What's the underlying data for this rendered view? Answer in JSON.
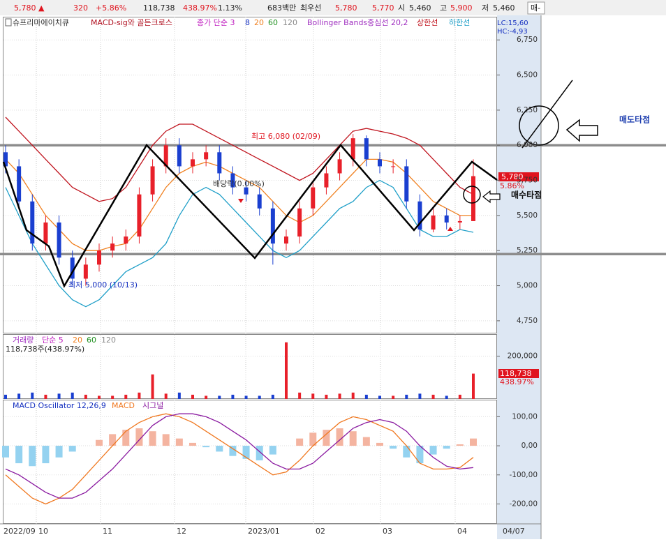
{
  "header": {
    "items": [
      "5,780 ▲",
      "320",
      "+5.86%",
      "118,738",
      "438.97%",
      "1.13%",
      "683백만",
      "최우선",
      "5,780",
      "5,770",
      "시",
      "5,460",
      "고",
      "5,900",
      "저",
      "5,460",
      "매-"
    ]
  },
  "legend": [
    "슈프리마에이치큐",
    "MACD-sig와 골든크로스",
    "종가 단순 3",
    "8",
    "20",
    "60",
    "120",
    "Bollinger Bands중심선 20,2",
    "상한선",
    "하한선"
  ],
  "corner": [
    "LC:15,60",
    "HC:-4,93"
  ],
  "annotations": {
    "high": "최고 6,080 (02/09)",
    "low": "최저 5,000 (10/13)",
    "ex_dividend": "배당락(0.00%)",
    "buy": "매수타점",
    "sell": "매도타점"
  },
  "x_labels": [
    "2022/09",
    "10",
    "11",
    "12",
    "2023/01",
    "02",
    "03",
    "04",
    "04/07"
  ],
  "chart_data": {
    "type": "candlestick",
    "up_color": "#e8202a",
    "down_color": "#1a3fd0",
    "open": [
      5950,
      5850,
      5600,
      5300,
      5450,
      5200,
      5050,
      5150,
      5250,
      5300,
      5350,
      5650,
      5850,
      6000,
      5850,
      5900,
      5950,
      5800,
      5700,
      5650,
      5550,
      5300,
      5350,
      5550,
      5700,
      5800,
      5900,
      6050,
      5900,
      5850,
      5850,
      5600,
      5400,
      5500,
      5450,
      5460
    ],
    "high": [
      6000,
      5900,
      5650,
      5500,
      5500,
      5250,
      5200,
      5300,
      5350,
      5400,
      5700,
      5900,
      6050,
      6050,
      5950,
      6000,
      6000,
      5850,
      5750,
      5700,
      5600,
      5400,
      5600,
      5750,
      5850,
      5950,
      6080,
      6070,
      5950,
      5900,
      5900,
      5650,
      5550,
      5550,
      5500,
      5900
    ],
    "low": [
      5800,
      5550,
      5250,
      5250,
      5150,
      5000,
      5000,
      5100,
      5200,
      5250,
      5300,
      5600,
      5800,
      5800,
      5800,
      5850,
      5750,
      5650,
      5600,
      5500,
      5150,
      5250,
      5300,
      5500,
      5650,
      5750,
      5850,
      5850,
      5800,
      5800,
      5550,
      5350,
      5380,
      5400,
      5400,
      5460
    ],
    "close": [
      5850,
      5600,
      5300,
      5450,
      5200,
      5050,
      5150,
      5250,
      5300,
      5350,
      5650,
      5850,
      6000,
      5850,
      5900,
      5950,
      5800,
      5700,
      5650,
      5550,
      5300,
      5350,
      5550,
      5700,
      5800,
      5900,
      6050,
      5900,
      5850,
      5850,
      5600,
      5400,
      5500,
      5450,
      5460,
      5780
    ],
    "series": [
      {
        "name": "상한선",
        "color": "#c0141e",
        "values": [
          6200,
          6100,
          6000,
          5900,
          5800,
          5700,
          5650,
          5600,
          5620,
          5700,
          5850,
          6000,
          6100,
          6150,
          6150,
          6100,
          6050,
          6000,
          5950,
          5900,
          5850,
          5800,
          5750,
          5800,
          5900,
          6000,
          6100,
          6120,
          6100,
          6080,
          6050,
          6000,
          5900,
          5800,
          5700,
          5650
        ]
      },
      {
        "name": "하한선",
        "color": "#1f9fc8",
        "values": [
          5700,
          5500,
          5300,
          5150,
          5000,
          4900,
          4850,
          4900,
          5000,
          5100,
          5150,
          5200,
          5300,
          5500,
          5650,
          5700,
          5650,
          5550,
          5450,
          5350,
          5250,
          5200,
          5250,
          5350,
          5450,
          5550,
          5600,
          5700,
          5750,
          5700,
          5550,
          5400,
          5350,
          5350,
          5400,
          5380
        ]
      },
      {
        "name": "20",
        "color": "#f08020",
        "values": [
          5900,
          5800,
          5650,
          5500,
          5400,
          5300,
          5250,
          5250,
          5280,
          5300,
          5400,
          5550,
          5700,
          5800,
          5850,
          5880,
          5850,
          5800,
          5750,
          5700,
          5600,
          5500,
          5450,
          5500,
          5600,
          5700,
          5800,
          5900,
          5900,
          5880,
          5800,
          5700,
          5600,
          5550,
          5500,
          5500
        ]
      }
    ],
    "last_label": "5,780",
    "last_change": "5.86%",
    "levels": [
      6000,
      5225
    ],
    "level_color": "#8c8c8c",
    "ylim": [
      4660,
      6925
    ],
    "yticks": [
      {
        "value": 6750,
        "label": "6,750"
      },
      {
        "value": 6500,
        "label": "6,500"
      },
      {
        "value": 6250,
        "label": "6,250"
      },
      {
        "value": 6000,
        "label": "6,000"
      },
      {
        "value": 5750,
        "label": "5,750"
      },
      {
        "value": 5500,
        "label": "5,500"
      },
      {
        "value": 5250,
        "label": "5,250"
      },
      {
        "value": 5000,
        "label": "5,000"
      },
      {
        "value": 4750,
        "label": "4,750"
      }
    ],
    "volume": {
      "legend": [
        "거래량",
        "단순 5",
        "20",
        "60",
        "120"
      ],
      "summary": "118,738주(438.97%)",
      "values": [
        20000,
        25000,
        30000,
        20000,
        25000,
        30000,
        20000,
        15000,
        15000,
        20000,
        30000,
        115000,
        25000,
        30000,
        20000,
        15000,
        15000,
        20000,
        15000,
        15000,
        20000,
        265000,
        30000,
        25000,
        20000,
        25000,
        30000,
        20000,
        15000,
        15000,
        20000,
        25000,
        20000,
        15000,
        20000,
        118738
      ],
      "last_label": "118,738",
      "last_change": "438.97%",
      "ylim": [
        0,
        300000
      ],
      "yticks": [
        {
          "value": 200000,
          "label": "200,000"
        }
      ]
    },
    "macd": {
      "legend": [
        "MACD Oscillator 12,26,9",
        "MACD",
        "시그널"
      ],
      "oscillator": [
        -40,
        -60,
        -70,
        -60,
        -40,
        -20,
        0,
        20,
        40,
        55,
        60,
        50,
        40,
        25,
        10,
        -5,
        -20,
        -35,
        -45,
        -50,
        -30,
        0,
        25,
        45,
        55,
        60,
        50,
        30,
        10,
        -10,
        -40,
        -60,
        -30,
        -10,
        5,
        25
      ],
      "pos_color": "#f4b4a0",
      "neg_color": "#94d2f0",
      "series": [
        {
          "name": "MACD",
          "color": "#f07820",
          "values": [
            -100,
            -140,
            -180,
            -200,
            -180,
            -150,
            -100,
            -50,
            0,
            50,
            80,
            100,
            110,
            100,
            80,
            50,
            20,
            -10,
            -40,
            -70,
            -100,
            -90,
            -50,
            0,
            40,
            80,
            100,
            90,
            70,
            50,
            0,
            -60,
            -80,
            -80,
            -75,
            -40
          ]
        },
        {
          "name": "시그널",
          "color": "#8a1aa0",
          "values": [
            -80,
            -100,
            -130,
            -160,
            -180,
            -180,
            -160,
            -120,
            -80,
            -30,
            20,
            70,
            100,
            110,
            110,
            100,
            80,
            50,
            20,
            -20,
            -60,
            -80,
            -80,
            -60,
            -20,
            20,
            60,
            80,
            90,
            80,
            50,
            0,
            -40,
            -70,
            -80,
            -75
          ]
        }
      ],
      "ylim": [
        -266,
        156
      ],
      "yticks": [
        {
          "value": 100,
          "label": "100,00"
        },
        {
          "value": 0,
          "label": "0,00"
        },
        {
          "value": -100,
          "label": "-100,00"
        },
        {
          "value": -200,
          "label": "-200,00"
        }
      ]
    }
  }
}
